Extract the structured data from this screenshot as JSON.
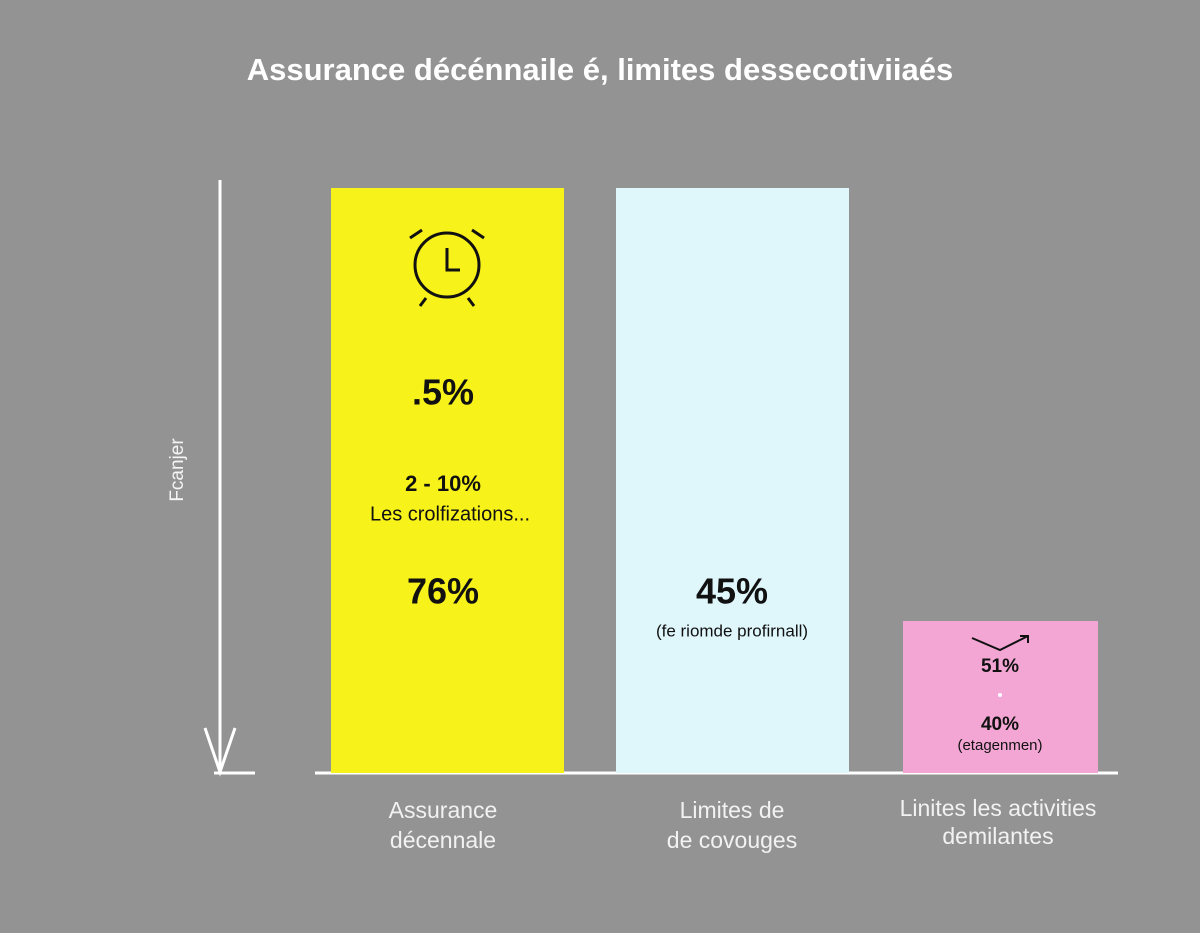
{
  "title": "Assurance décénnaile é, limites dessecotiviiaés",
  "axis_label": "Fcanjer",
  "bars": [
    {
      "label": [
        "Assurance",
        "décennale"
      ],
      "texts": [
        ".5%",
        "2 - 10%",
        "Les crolfizations...",
        "76%"
      ]
    },
    {
      "label": [
        "Limites de",
        "de covouges"
      ],
      "texts": [
        "45%",
        "(fe riomde profirnall)"
      ]
    },
    {
      "label": [
        "Linites les activities",
        "demilantes"
      ],
      "texts": [
        "51%",
        "40%",
        "(etagenmen)"
      ]
    }
  ]
}
